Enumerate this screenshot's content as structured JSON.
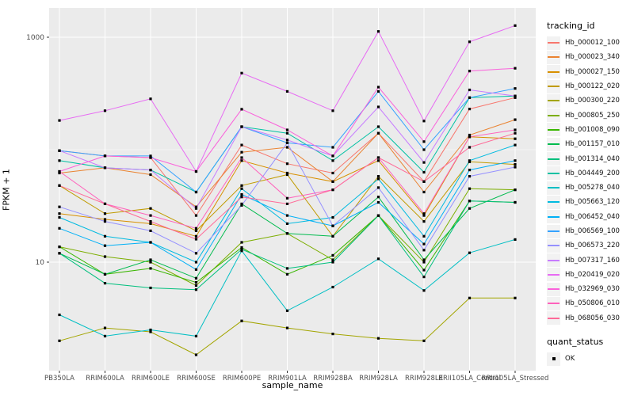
{
  "colors": {
    "panel_bg": "#EBEBEB",
    "grid": "#FFFFFF",
    "axis_text": "#4D4D4D",
    "title_text": "#000000",
    "legend_key_bg": "#F2F2F2",
    "point": "#000000"
  },
  "chart_data": {
    "type": "line",
    "xlabel": "sample_name",
    "ylabel": "FPKM + 1",
    "y_scale": "log10",
    "y_tick_labels": [
      "1000",
      "10"
    ],
    "y_major_breaks": [
      1000,
      10
    ],
    "y_minor_breaks": [
      100
    ],
    "ylim": [
      1.05,
      1800
    ],
    "grid": true,
    "legend_position": "right",
    "legend_title": "tracking_id",
    "point_legend": {
      "title": "quant_status",
      "label": "OK"
    },
    "x_categories": [
      "PB350LA",
      "RRIM600LA",
      "RRIM600LE",
      "RRIM600SE",
      "RRIM600PE",
      "RRIM901LA",
      "RRIM928BA",
      "RRIM928LA",
      "RRIM928LE",
      "RRII105LA_Control",
      "RRII105LA_Stressed"
    ],
    "series": [
      {
        "name": "Hb_000012_100",
        "color": "#F8766D",
        "values": [
          98,
          88,
          85,
          26,
          110,
          75,
          62,
          140,
          52,
          230,
          290
        ]
      },
      {
        "name": "Hb_000023_340",
        "color": "#EA8331",
        "values": [
          62,
          69,
          60,
          31,
          95,
          105,
          52,
          140,
          42,
          135,
          185
        ]
      },
      {
        "name": "Hb_000027_150",
        "color": "#D89000",
        "values": [
          27,
          24,
          22,
          17,
          80,
          62,
          52,
          80,
          26,
          130,
          125
        ]
      },
      {
        "name": "Hb_000122_020",
        "color": "#C09B00",
        "values": [
          48,
          27,
          30,
          19,
          48,
          60,
          17,
          58,
          23,
          78,
          74
        ]
      },
      {
        "name": "Hb_000300_220",
        "color": "#A3A500",
        "values": [
          2.0,
          2.6,
          2.4,
          1.5,
          3.0,
          2.6,
          2.3,
          2.1,
          2.0,
          4.8,
          4.8
        ]
      },
      {
        "name": "Hb_000805_250",
        "color": "#7CAE00",
        "values": [
          13.7,
          11.2,
          10,
          6.2,
          15,
          18,
          10.5,
          26,
          10,
          45,
          44
        ]
      },
      {
        "name": "Hb_001008_090",
        "color": "#39B600",
        "values": [
          13.7,
          7.8,
          8.8,
          6.6,
          13.5,
          7.8,
          11.5,
          26,
          8.5,
          35,
          34
        ]
      },
      {
        "name": "Hb_001157_010",
        "color": "#00BB4E",
        "values": [
          12,
          7.8,
          10.5,
          7.2,
          33,
          18,
          17,
          38,
          10.5,
          30,
          44
        ]
      },
      {
        "name": "Hb_001314_040",
        "color": "#00BF7D",
        "values": [
          12,
          6.5,
          5.9,
          5.7,
          13,
          8.8,
          10,
          26,
          7.4,
          35,
          34
        ]
      },
      {
        "name": "Hb_004449_200",
        "color": "#00C1A3",
        "values": [
          80,
          69,
          66,
          42,
          160,
          140,
          80,
          160,
          63,
          290,
          300
        ]
      },
      {
        "name": "Hb_005278_040",
        "color": "#00BFC4",
        "values": [
          3.4,
          2.2,
          2.5,
          2.2,
          12.6,
          3.7,
          6.0,
          10.7,
          5.6,
          12.1,
          15.9
        ]
      },
      {
        "name": "Hb_005663_120",
        "color": "#00BAE0",
        "values": [
          25,
          17,
          15,
          10,
          45,
          22,
          25,
          55,
          17,
          80,
          110
        ]
      },
      {
        "name": "Hb_006452_040",
        "color": "#00B0F6",
        "values": [
          20,
          14,
          15,
          8.6,
          40,
          26,
          21,
          34,
          14.5,
          66,
          80
        ]
      },
      {
        "name": "Hb_006569_100",
        "color": "#35A2FF",
        "values": [
          98,
          88,
          88,
          42,
          160,
          115,
          105,
          330,
          100,
          290,
          350
        ]
      },
      {
        "name": "Hb_006573_220",
        "color": "#9590FF",
        "values": [
          31,
          23,
          19,
          12,
          32,
          115,
          21,
          46,
          12.8,
          58,
          70
        ]
      },
      {
        "name": "Hb_007317_160",
        "color": "#C77CFF",
        "values": [
          98,
          69,
          66,
          30,
          160,
          122,
          88,
          240,
          77,
          340,
          300
        ]
      },
      {
        "name": "Hb_020419_020",
        "color": "#E76BF3",
        "values": [
          182,
          222,
          283,
          64,
          480,
          330,
          222,
          1125,
          180,
          910,
          1270
        ]
      },
      {
        "name": "Hb_032969_030",
        "color": "#FA62DB",
        "values": [
          64,
          88,
          85,
          64,
          229,
          150,
          88,
          360,
          118,
          500,
          530
        ]
      },
      {
        "name": "Hb_050806_010",
        "color": "#FF62BC",
        "values": [
          64,
          33,
          26,
          20,
          85,
          37,
          44,
          85,
          27,
          130,
          150
        ]
      },
      {
        "name": "Hb_068056_030",
        "color": "#FF6A98",
        "values": [
          48,
          33,
          23,
          16,
          38,
          33,
          44,
          85,
          52,
          105,
          140
        ]
      }
    ]
  }
}
